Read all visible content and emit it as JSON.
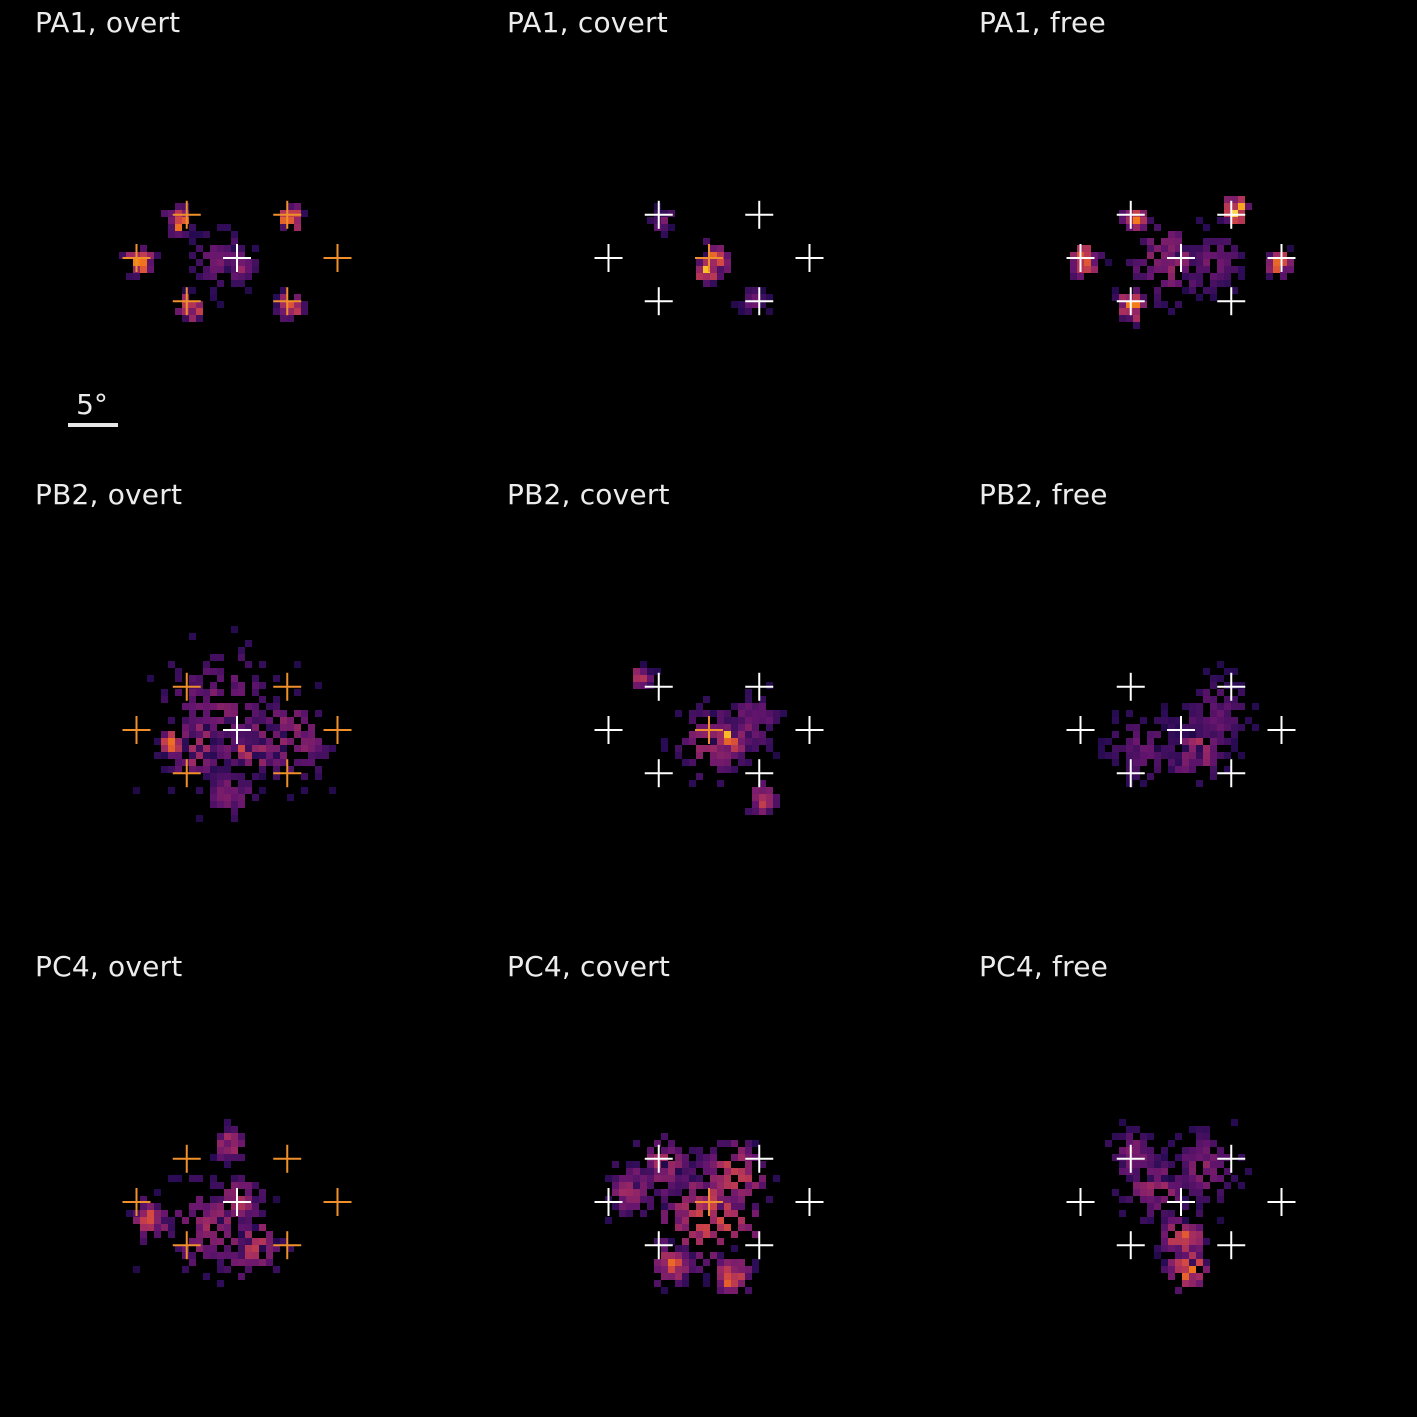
{
  "colors": {
    "background": "#000000",
    "highlight_cross": "#f0902c",
    "neutral_cross": "#ffffff",
    "colormap": "inferno"
  },
  "scale_bar": {
    "label": "5°",
    "degrees": 5
  },
  "chart_data": {
    "type": "heatmap",
    "layout": "3x3 grid of gaze-density heatmaps",
    "rows": [
      "PA1",
      "PB2",
      "PC4"
    ],
    "columns": [
      "overt",
      "covert",
      "free"
    ],
    "target_grid_deg": {
      "positions": [
        [
          -5,
          4.3
        ],
        [
          5,
          4.3
        ],
        [
          -10,
          0
        ],
        [
          0,
          0
        ],
        [
          10,
          0
        ],
        [
          -5,
          -4.3
        ],
        [
          5,
          -4.3
        ]
      ],
      "center": [
        0,
        0
      ]
    },
    "panels": [
      {
        "title": "PA1, overt",
        "participant": "PA1",
        "condition": "overt",
        "highlighted_targets": [
          0,
          1,
          2,
          4,
          5,
          6
        ],
        "hotspots": [
          [
            -6,
            4,
            1.0,
            0.8
          ],
          [
            5,
            4.3,
            0.9,
            0.95
          ],
          [
            -10,
            0,
            1.1,
            0.85
          ],
          [
            -5,
            -4.5,
            1.0,
            0.8
          ],
          [
            5,
            -4.5,
            1.0,
            0.7
          ],
          [
            -2,
            0,
            2.5,
            0.3
          ],
          [
            0,
            -0.5,
            1.2,
            0.45
          ]
        ]
      },
      {
        "title": "PA1, covert",
        "participant": "PA1",
        "condition": "covert",
        "highlighted_targets": [
          3
        ],
        "hotspots": [
          [
            0,
            0,
            1.3,
            1.0
          ],
          [
            -0.5,
            -1.0,
            1.0,
            0.85
          ],
          [
            -5,
            4,
            0.8,
            0.3
          ],
          [
            4,
            -4,
            1.0,
            0.3
          ]
        ]
      },
      {
        "title": "PA1, free",
        "participant": "PA1",
        "condition": "free",
        "highlighted_targets": [],
        "hotspots": [
          [
            -5,
            4.2,
            0.9,
            0.85
          ],
          [
            5,
            5.0,
            1.0,
            1.0
          ],
          [
            -10,
            0,
            1.2,
            0.8
          ],
          [
            9.5,
            -0.3,
            0.9,
            0.85
          ],
          [
            -5,
            -4.5,
            1.1,
            0.95
          ],
          [
            -1.5,
            0,
            3.5,
            0.4
          ],
          [
            3,
            0,
            2.5,
            0.3
          ]
        ]
      },
      {
        "title": "PB2, overt",
        "participant": "PB2",
        "condition": "overt",
        "highlighted_targets": [
          0,
          1,
          2,
          4,
          5,
          6
        ],
        "hotspots": [
          [
            -4,
            -1.3,
            3.0,
            0.5
          ],
          [
            1,
            -1.0,
            2.5,
            0.55
          ],
          [
            -7,
            -1.0,
            0.8,
            0.9
          ],
          [
            0.6,
            -1.4,
            0.7,
            0.85
          ],
          [
            5,
            -0.5,
            3.5,
            0.4
          ],
          [
            -2,
            3,
            5.0,
            0.3
          ],
          [
            -1,
            -6,
            2.0,
            0.35
          ]
        ]
      },
      {
        "title": "PB2, covert",
        "participant": "PB2",
        "condition": "covert",
        "highlighted_targets": [
          3
        ],
        "hotspots": [
          [
            1.5,
            -0.7,
            1.5,
            0.95
          ],
          [
            0,
            -1,
            3.0,
            0.45
          ],
          [
            -7,
            5.5,
            0.8,
            0.55
          ],
          [
            5,
            -6.5,
            1.2,
            0.6
          ],
          [
            4,
            1,
            2.5,
            0.3
          ]
        ]
      },
      {
        "title": "PB2, free",
        "participant": "PB2",
        "condition": "free",
        "highlighted_targets": [],
        "hotspots": [
          [
            0.3,
            -1.0,
            1.0,
            1.0
          ],
          [
            1,
            -1.5,
            2.5,
            0.45
          ],
          [
            -4,
            -1.5,
            3.0,
            0.25
          ],
          [
            3,
            2,
            3.0,
            0.25
          ]
        ]
      },
      {
        "title": "PC4, overt",
        "participant": "PC4",
        "condition": "overt",
        "highlighted_targets": [
          0,
          1,
          2,
          4,
          5,
          6
        ],
        "hotspots": [
          [
            0.3,
            -4.7,
            1.3,
            1.0
          ],
          [
            1,
            -4.0,
            2.5,
            0.65
          ],
          [
            -9,
            -1.5,
            1.5,
            0.6
          ],
          [
            -3,
            -2.0,
            4.0,
            0.4
          ],
          [
            -1,
            6,
            1.5,
            0.45
          ],
          [
            0,
            0.5,
            2.0,
            0.45
          ]
        ]
      },
      {
        "title": "PC4, covert",
        "participant": "PC4",
        "condition": "covert",
        "highlighted_targets": [
          3
        ],
        "hotspots": [
          [
            0,
            -1,
            5.0,
            0.6
          ],
          [
            -4,
            -6,
            1.5,
            0.7
          ],
          [
            2,
            -7,
            1.5,
            0.75
          ],
          [
            -5,
            4,
            2.5,
            0.45
          ],
          [
            2,
            3,
            3.0,
            0.55
          ],
          [
            -8,
            1.5,
            2.0,
            0.45
          ]
        ]
      },
      {
        "title": "PC4, free",
        "participant": "PC4",
        "condition": "free",
        "highlighted_targets": [],
        "hotspots": [
          [
            0,
            -4.5,
            1.5,
            1.0
          ],
          [
            0.5,
            -6,
            1.8,
            0.8
          ],
          [
            0,
            -3,
            2.0,
            0.6
          ],
          [
            -3,
            2,
            3.0,
            0.4
          ],
          [
            2,
            4,
            3.0,
            0.35
          ],
          [
            -5,
            5,
            2.0,
            0.35
          ]
        ]
      }
    ]
  }
}
